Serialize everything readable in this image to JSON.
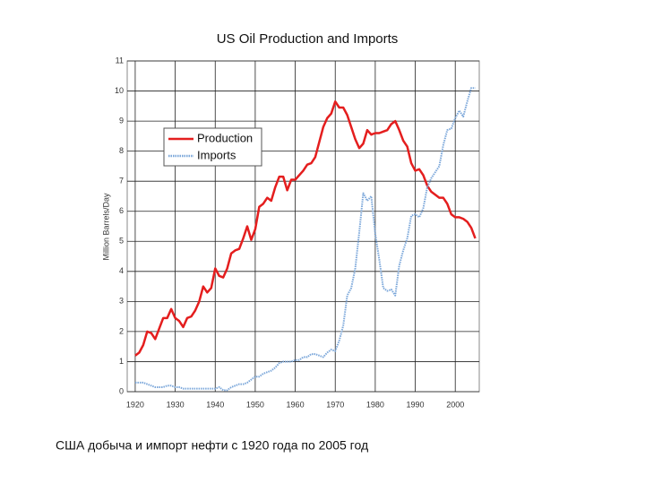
{
  "chart_data": {
    "type": "line",
    "title": "US Oil Production and Imports",
    "ylabel": "Million Barrels/Day",
    "x": [
      1920,
      1921,
      1922,
      1923,
      1924,
      1925,
      1926,
      1927,
      1928,
      1929,
      1930,
      1931,
      1932,
      1933,
      1934,
      1935,
      1936,
      1937,
      1938,
      1939,
      1940,
      1941,
      1942,
      1943,
      1944,
      1945,
      1946,
      1947,
      1948,
      1949,
      1950,
      1951,
      1952,
      1953,
      1954,
      1955,
      1956,
      1957,
      1958,
      1959,
      1960,
      1961,
      1962,
      1963,
      1964,
      1965,
      1966,
      1967,
      1968,
      1969,
      1970,
      1971,
      1972,
      1973,
      1974,
      1975,
      1976,
      1977,
      1978,
      1979,
      1980,
      1981,
      1982,
      1983,
      1984,
      1985,
      1986,
      1987,
      1988,
      1989,
      1990,
      1991,
      1992,
      1993,
      1994,
      1995,
      1996,
      1997,
      1998,
      1999,
      2000,
      2001,
      2002,
      2003,
      2004,
      2005
    ],
    "series": [
      {
        "name": "Production",
        "color": "#e41e1e",
        "values": [
          1.2,
          1.3,
          1.55,
          2.0,
          1.95,
          1.75,
          2.1,
          2.45,
          2.45,
          2.75,
          2.45,
          2.35,
          2.15,
          2.45,
          2.5,
          2.7,
          3.0,
          3.5,
          3.3,
          3.45,
          4.1,
          3.85,
          3.8,
          4.1,
          4.6,
          4.7,
          4.75,
          5.1,
          5.5,
          5.05,
          5.4,
          6.15,
          6.25,
          6.45,
          6.35,
          6.8,
          7.15,
          7.15,
          6.7,
          7.05,
          7.05,
          7.2,
          7.35,
          7.55,
          7.6,
          7.8,
          8.3,
          8.8,
          9.1,
          9.25,
          9.65,
          9.45,
          9.45,
          9.2,
          8.8,
          8.4,
          8.1,
          8.25,
          8.7,
          8.55,
          8.6,
          8.6,
          8.65,
          8.7,
          8.9,
          9.0,
          8.7,
          8.35,
          8.15,
          7.6,
          7.35,
          7.4,
          7.2,
          6.85,
          6.65,
          6.55,
          6.45,
          6.45,
          6.25,
          5.9,
          5.8,
          5.8,
          5.75,
          5.65,
          5.45,
          5.1
        ]
      },
      {
        "name": "Imports",
        "color": "#7ba7da",
        "values": [
          0.3,
          0.3,
          0.3,
          0.25,
          0.2,
          0.15,
          0.15,
          0.15,
          0.2,
          0.2,
          0.15,
          0.15,
          0.1,
          0.1,
          0.1,
          0.1,
          0.1,
          0.1,
          0.1,
          0.1,
          0.1,
          0.15,
          0.05,
          0.05,
          0.15,
          0.2,
          0.25,
          0.25,
          0.3,
          0.4,
          0.5,
          0.5,
          0.6,
          0.65,
          0.7,
          0.8,
          0.95,
          1.0,
          1.0,
          1.0,
          1.05,
          1.05,
          1.15,
          1.15,
          1.25,
          1.25,
          1.2,
          1.15,
          1.3,
          1.4,
          1.35,
          1.7,
          2.2,
          3.2,
          3.45,
          4.1,
          5.3,
          6.6,
          6.35,
          6.5,
          5.25,
          4.4,
          3.45,
          3.35,
          3.4,
          3.2,
          4.2,
          4.7,
          5.1,
          5.85,
          5.9,
          5.8,
          6.1,
          6.8,
          7.1,
          7.3,
          7.5,
          8.2,
          8.7,
          8.75,
          9.1,
          9.35,
          9.15,
          9.65,
          10.1,
          10.1
        ]
      }
    ],
    "xlim": [
      1918,
      2006
    ],
    "xticks": [
      1920,
      1930,
      1940,
      1950,
      1960,
      1970,
      1980,
      1990,
      2000
    ],
    "ylim": [
      0,
      11
    ],
    "yticks": [
      0,
      1,
      2,
      3,
      4,
      5,
      6,
      7,
      8,
      9,
      10,
      11
    ],
    "grid": true,
    "legend": "upper left"
  },
  "caption": "США добыча и импорт нефти с 1920 года по 2005 год"
}
